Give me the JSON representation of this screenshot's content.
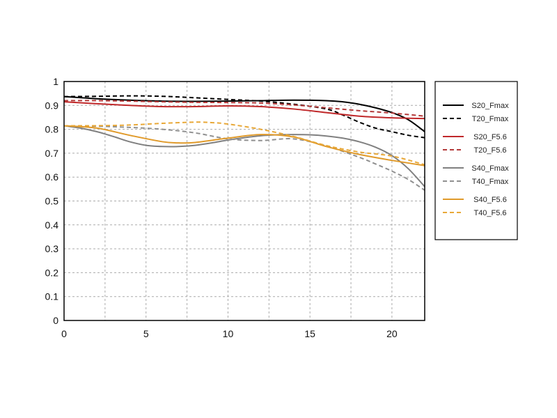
{
  "chart_data": {
    "type": "line",
    "title": "",
    "xlabel": "",
    "ylabel": "",
    "xlim": [
      0,
      22
    ],
    "ylim": [
      0,
      1
    ],
    "x_ticks": [
      "0",
      "5",
      "10",
      "15",
      "20"
    ],
    "y_ticks": [
      "0",
      "0.1",
      "0.2",
      "0.3",
      "0.4",
      "0.5",
      "0.6",
      "0.7",
      "0.8",
      "0.9",
      "1"
    ],
    "grid": true,
    "legend_position": "right",
    "series": [
      {
        "name": "S20_Fmax",
        "color": "#000000",
        "dash": false,
        "x": [
          0,
          2,
          4,
          6,
          8,
          10,
          12,
          14,
          16,
          17,
          18,
          19,
          20,
          21,
          22
        ],
        "y": [
          0.937,
          0.928,
          0.922,
          0.918,
          0.917,
          0.918,
          0.92,
          0.922,
          0.92,
          0.915,
          0.905,
          0.89,
          0.87,
          0.84,
          0.79
        ]
      },
      {
        "name": "T20_Fmax",
        "color": "#000000",
        "dash": true,
        "x": [
          0,
          2,
          4,
          6,
          8,
          10,
          12,
          14,
          16,
          17,
          18,
          19,
          20,
          21,
          22
        ],
        "y": [
          0.937,
          0.938,
          0.94,
          0.938,
          0.932,
          0.925,
          0.918,
          0.905,
          0.885,
          0.86,
          0.83,
          0.805,
          0.79,
          0.775,
          0.765
        ]
      },
      {
        "name": "S20_F5.6",
        "color": "#c0282a",
        "dash": false,
        "x": [
          0,
          2,
          4,
          6,
          8,
          10,
          12,
          14,
          16,
          18,
          20,
          22
        ],
        "y": [
          0.915,
          0.907,
          0.9,
          0.895,
          0.895,
          0.898,
          0.895,
          0.885,
          0.87,
          0.855,
          0.848,
          0.845
        ]
      },
      {
        "name": "T20_F5.6",
        "color": "#b33a3a",
        "dash": true,
        "x": [
          0,
          2,
          4,
          6,
          8,
          10,
          12,
          14,
          16,
          18,
          20,
          22
        ],
        "y": [
          0.92,
          0.92,
          0.918,
          0.915,
          0.913,
          0.912,
          0.91,
          0.902,
          0.89,
          0.878,
          0.868,
          0.855
        ]
      },
      {
        "name": "S40_Fmax",
        "color": "#808080",
        "dash": false,
        "x": [
          0,
          1,
          2,
          3,
          4,
          5,
          6,
          7,
          8,
          9,
          10,
          11,
          12,
          13,
          14,
          15,
          16,
          17,
          18,
          19,
          20,
          21,
          22
        ],
        "y": [
          0.815,
          0.805,
          0.79,
          0.77,
          0.748,
          0.733,
          0.728,
          0.728,
          0.733,
          0.743,
          0.755,
          0.765,
          0.773,
          0.777,
          0.778,
          0.777,
          0.772,
          0.763,
          0.748,
          0.725,
          0.69,
          0.635,
          0.56
        ]
      },
      {
        "name": "T40_Fmax",
        "color": "#909090",
        "dash": true,
        "x": [
          0,
          2,
          4,
          6,
          8,
          10,
          12,
          14,
          16,
          18,
          19,
          20,
          21,
          22
        ],
        "y": [
          0.815,
          0.813,
          0.808,
          0.8,
          0.785,
          0.76,
          0.753,
          0.76,
          0.73,
          0.683,
          0.655,
          0.625,
          0.59,
          0.545
        ]
      },
      {
        "name": "S40_F5.6",
        "color": "#e09a2a",
        "dash": false,
        "x": [
          0,
          2,
          4,
          6,
          7,
          8,
          10,
          12,
          14,
          16,
          18,
          20,
          22
        ],
        "y": [
          0.815,
          0.805,
          0.775,
          0.748,
          0.743,
          0.745,
          0.763,
          0.778,
          0.768,
          0.728,
          0.695,
          0.67,
          0.648
        ]
      },
      {
        "name": "T40_F5.6",
        "color": "#e8a838",
        "dash": true,
        "x": [
          0,
          2,
          4,
          6,
          8,
          9,
          10,
          12,
          14,
          16,
          18,
          20,
          22
        ],
        "y": [
          0.815,
          0.815,
          0.818,
          0.825,
          0.83,
          0.828,
          0.822,
          0.8,
          0.77,
          0.732,
          0.705,
          0.688,
          0.652
        ]
      }
    ]
  }
}
